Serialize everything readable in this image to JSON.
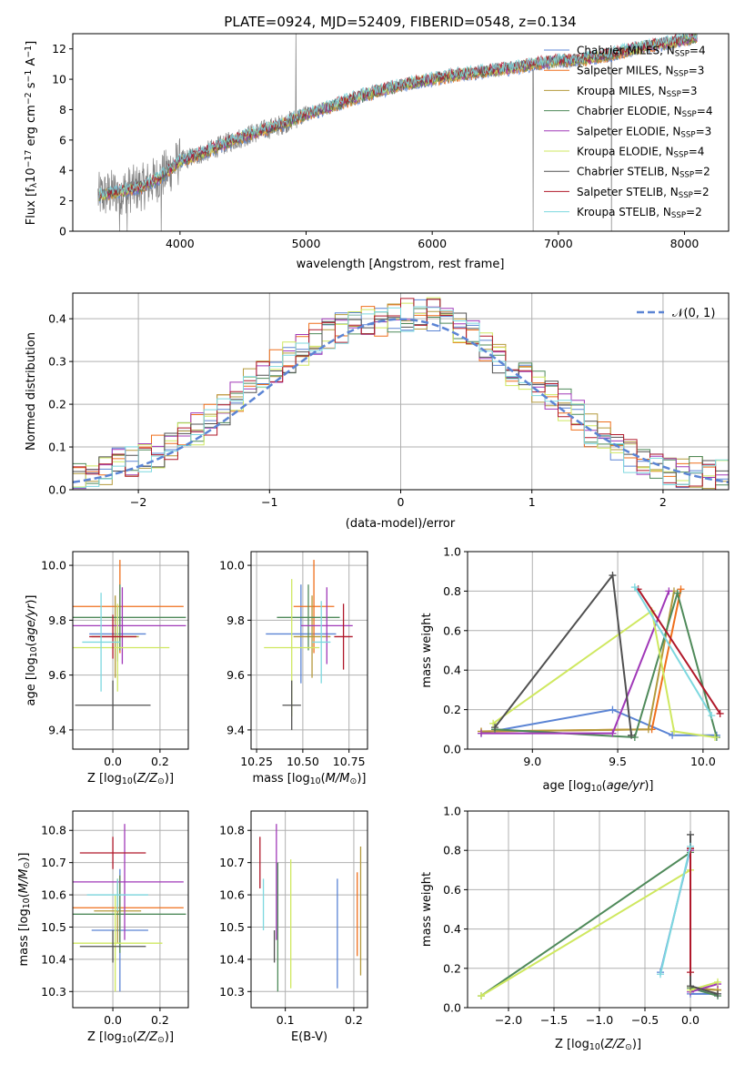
{
  "colors": {
    "chabrier_miles": "#5b84d4",
    "salpeter_miles": "#ef6f1b",
    "kroupa_miles": "#b49a3c",
    "chabrier_elodie": "#4f8a5a",
    "salpeter_elodie": "#a038b8",
    "kroupa_elodie": "#cfe860",
    "chabrier_stelib": "#505050",
    "salpeter_stelib": "#b0182a",
    "kroupa_stelib": "#7dd8df",
    "data": "#808080",
    "normal": "#5b84d4",
    "grid": "#b0b0b0"
  },
  "chart_data": [
    {
      "id": "spectrum",
      "type": "line",
      "title": "PLATE=0924, MJD=52409, FIBERID=0548, z=0.134",
      "xlabel": "wavelength [Angstrom, rest frame]",
      "ylabel": "Flux [f_λ10^-17 erg cm^-2 s^-1 A^-1]",
      "xlim": [
        3150,
        8350
      ],
      "ylim": [
        0,
        13
      ],
      "xticks": [
        "4000",
        "5000",
        "6000",
        "7000",
        "8000"
      ],
      "yticks": [
        "0",
        "2",
        "4",
        "6",
        "8",
        "10",
        "12"
      ],
      "legend_position": "top-right",
      "legend": [
        "Chabrier MILES, N_SSP=4",
        "Salpeter MILES, N_SSP=3",
        "Kroupa MILES, N_SSP=3",
        "Chabrier ELODIE, N_SSP=4",
        "Salpeter ELODIE, N_SSP=3",
        "Kroupa ELODIE, N_SSP=4",
        "Chabrier STELIB, N_SSP=2",
        "Salpeter STELIB, N_SSP=2",
        "Kroupa STELIB, N_SSP=2"
      ],
      "continuum": [
        [
          3350,
          2.3
        ],
        [
          3500,
          2.6
        ],
        [
          3700,
          2.9
        ],
        [
          3850,
          3.6
        ],
        [
          4000,
          4.6
        ],
        [
          4200,
          5.2
        ],
        [
          4400,
          5.9
        ],
        [
          4600,
          6.5
        ],
        [
          4800,
          7.0
        ],
        [
          5000,
          7.7
        ],
        [
          5200,
          8.2
        ],
        [
          5400,
          8.8
        ],
        [
          5600,
          9.3
        ],
        [
          5800,
          9.7
        ],
        [
          6000,
          10.0
        ],
        [
          6200,
          10.3
        ],
        [
          6400,
          10.5
        ],
        [
          6600,
          10.7
        ],
        [
          6800,
          11.0
        ],
        [
          7000,
          11.2
        ],
        [
          7200,
          11.3
        ],
        [
          7400,
          11.6
        ],
        [
          7600,
          12.0
        ],
        [
          7800,
          12.3
        ],
        [
          8000,
          12.6
        ],
        [
          8100,
          12.8
        ]
      ],
      "spikes": [
        [
          3520,
          0
        ],
        [
          3580,
          0
        ],
        [
          3850,
          0
        ],
        [
          4920,
          13
        ],
        [
          6800,
          0
        ],
        [
          7420,
          0
        ]
      ]
    },
    {
      "id": "residual_hist",
      "type": "line",
      "xlabel": "(data-model)/error",
      "ylabel": "Normed distribution",
      "xlim": [
        -2.5,
        2.5
      ],
      "ylim": [
        0,
        0.46
      ],
      "xticks": [
        "−2",
        "−1",
        "0",
        "1",
        "2"
      ],
      "yticks": [
        "0.0",
        "0.1",
        "0.2",
        "0.3",
        "0.4"
      ],
      "legend": [
        "𝒩(0, 1)"
      ],
      "legend_position": "top-right",
      "bin_width": 0.1,
      "hist_envelope": [
        0.03,
        0.04,
        0.05,
        0.06,
        0.07,
        0.08,
        0.09,
        0.1,
        0.12,
        0.14,
        0.16,
        0.19,
        0.22,
        0.25,
        0.27,
        0.29,
        0.31,
        0.33,
        0.35,
        0.37,
        0.38,
        0.39,
        0.39,
        0.39,
        0.4,
        0.41,
        0.41,
        0.41,
        0.4,
        0.38,
        0.36,
        0.33,
        0.3,
        0.28,
        0.26,
        0.24,
        0.22,
        0.2,
        0.17,
        0.14,
        0.12,
        0.1,
        0.08,
        0.07,
        0.06,
        0.05,
        0.04,
        0.04,
        0.03,
        0.03
      ]
    },
    {
      "id": "age_vs_z",
      "type": "scatter",
      "xlabel": "Z [log10(Z/Z☉)]",
      "ylabel": "age [log10(age/yr)]",
      "xlim": [
        -0.17,
        0.32
      ],
      "ylim": [
        9.33,
        10.05
      ],
      "xticks": [
        "0.0",
        "0.2"
      ],
      "yticks": [
        "9.4",
        "9.6",
        "9.8",
        "10.0"
      ],
      "points": [
        {
          "model": "chabrier_miles",
          "x": 0.02,
          "xerr": 0.12,
          "y": 9.75,
          "yerr": 0.1
        },
        {
          "model": "salpeter_miles",
          "x": 0.03,
          "xerr": 0.27,
          "y": 9.85,
          "yerr": 0.17
        },
        {
          "model": "kroupa_miles",
          "x": 0.01,
          "xerr": 0.1,
          "y": 9.74,
          "yerr": 0.15
        },
        {
          "model": "chabrier_elodie",
          "x": 0.03,
          "xerr": 0.28,
          "y": 9.81,
          "yerr": 0.12
        },
        {
          "model": "salpeter_elodie",
          "x": 0.04,
          "xerr": 0.27,
          "y": 9.78,
          "yerr": 0.14
        },
        {
          "model": "kroupa_elodie",
          "x": 0.02,
          "xerr": 0.22,
          "y": 9.7,
          "yerr": 0.16
        },
        {
          "model": "chabrier_stelib",
          "x": 0.0,
          "xerr": 0.16,
          "y": 9.49,
          "yerr": 0.09
        },
        {
          "model": "salpeter_stelib",
          "x": 0.0,
          "xerr": 0.1,
          "y": 9.74,
          "yerr": 0.08
        },
        {
          "model": "kroupa_stelib",
          "x": -0.05,
          "xerr": 0.08,
          "y": 9.72,
          "yerr": 0.18
        }
      ]
    },
    {
      "id": "age_vs_mass",
      "type": "scatter",
      "xlabel": "mass [log10(M/M☉)]",
      "ylabel": "",
      "xlim": [
        10.22,
        10.85
      ],
      "ylim": [
        9.33,
        10.05
      ],
      "xticks": [
        "10.25",
        "10.50",
        "10.75"
      ],
      "yticks": [
        "9.4",
        "9.6",
        "9.8",
        "10.0"
      ],
      "points": [
        {
          "model": "chabrier_miles",
          "x": 10.49,
          "xerr": 0.19,
          "y": 9.75,
          "yerr": 0.18
        },
        {
          "model": "salpeter_miles",
          "x": 10.56,
          "xerr": 0.11,
          "y": 9.85,
          "yerr": 0.17
        },
        {
          "model": "kroupa_miles",
          "x": 10.55,
          "xerr": 0.1,
          "y": 9.74,
          "yerr": 0.15
        },
        {
          "model": "chabrier_elodie",
          "x": 10.53,
          "xerr": 0.17,
          "y": 9.81,
          "yerr": 0.12
        },
        {
          "model": "salpeter_elodie",
          "x": 10.63,
          "xerr": 0.14,
          "y": 9.78,
          "yerr": 0.14
        },
        {
          "model": "kroupa_elodie",
          "x": 10.44,
          "xerr": 0.15,
          "y": 9.7,
          "yerr": 0.25
        },
        {
          "model": "chabrier_stelib",
          "x": 10.44,
          "xerr": 0.05,
          "y": 9.49,
          "yerr": 0.09
        },
        {
          "model": "salpeter_stelib",
          "x": 10.72,
          "xerr": 0.05,
          "y": 9.74,
          "yerr": 0.12
        },
        {
          "model": "kroupa_stelib",
          "x": 10.6,
          "xerr": 0.05,
          "y": 9.72,
          "yerr": 0.15
        }
      ]
    },
    {
      "id": "massweight_vs_age",
      "type": "line",
      "xlabel": "age [log10(age/yr)]",
      "ylabel": "mass weight",
      "xlim": [
        8.62,
        10.15
      ],
      "ylim": [
        0,
        1.0
      ],
      "xticks": [
        "9.0",
        "9.5",
        "10.0"
      ],
      "yticks": [
        "0.0",
        "0.2",
        "0.4",
        "0.6",
        "0.8",
        "1.0"
      ],
      "series": [
        {
          "model": "chabrier_miles",
          "x": [
            8.7,
            9.47,
            9.82,
            10.08
          ],
          "y": [
            0.08,
            0.2,
            0.07,
            0.07
          ]
        },
        {
          "model": "salpeter_miles",
          "x": [
            8.7,
            9.7,
            9.87
          ],
          "y": [
            0.09,
            0.1,
            0.81
          ]
        },
        {
          "model": "kroupa_miles",
          "x": [
            8.7,
            9.68,
            9.83
          ],
          "y": [
            0.09,
            0.1,
            0.8
          ]
        },
        {
          "model": "chabrier_elodie",
          "x": [
            8.78,
            9.6,
            9.85,
            10.08
          ],
          "y": [
            0.1,
            0.06,
            0.79,
            0.06
          ]
        },
        {
          "model": "salpeter_elodie",
          "x": [
            8.7,
            9.47,
            9.8
          ],
          "y": [
            0.08,
            0.08,
            0.8
          ]
        },
        {
          "model": "kroupa_elodie",
          "x": [
            8.77,
            9.7,
            9.83,
            10.07
          ],
          "y": [
            0.13,
            0.7,
            0.09,
            0.06
          ]
        },
        {
          "model": "chabrier_stelib",
          "x": [
            8.78,
            9.47,
            9.58
          ],
          "y": [
            0.11,
            0.88,
            0.07
          ]
        },
        {
          "model": "salpeter_stelib",
          "x": [
            9.62,
            10.1
          ],
          "y": [
            0.81,
            0.18
          ]
        },
        {
          "model": "kroupa_stelib",
          "x": [
            9.6,
            10.05
          ],
          "y": [
            0.82,
            0.17
          ]
        }
      ]
    },
    {
      "id": "mass_vs_z",
      "type": "scatter",
      "xlabel": "Z [log10(Z/Z☉)]",
      "ylabel": "mass [log10(M/M☉)]",
      "xlim": [
        -0.17,
        0.32
      ],
      "ylim": [
        10.25,
        10.86
      ],
      "xticks": [
        "0.0",
        "0.2"
      ],
      "yticks": [
        "10.3",
        "10.4",
        "10.5",
        "10.6",
        "10.7",
        "10.8"
      ],
      "points": [
        {
          "model": "chabrier_miles",
          "x": 0.03,
          "xerr": 0.12,
          "y": 10.49,
          "yerr": 0.19
        },
        {
          "model": "salpeter_miles",
          "x": 0.03,
          "xerr": 0.27,
          "y": 10.56,
          "yerr": 0.1
        },
        {
          "model": "kroupa_miles",
          "x": 0.02,
          "xerr": 0.1,
          "y": 10.55,
          "yerr": 0.1
        },
        {
          "model": "chabrier_elodie",
          "x": 0.03,
          "xerr": 0.28,
          "y": 10.54,
          "yerr": 0.12
        },
        {
          "model": "salpeter_elodie",
          "x": 0.05,
          "xerr": 0.25,
          "y": 10.64,
          "yerr": 0.18
        },
        {
          "model": "kroupa_elodie",
          "x": 0.01,
          "xerr": 0.2,
          "y": 10.45,
          "yerr": 0.15
        },
        {
          "model": "chabrier_stelib",
          "x": 0.0,
          "xerr": 0.14,
          "y": 10.44,
          "yerr": 0.05
        },
        {
          "model": "salpeter_stelib",
          "x": 0.0,
          "xerr": 0.14,
          "y": 10.73,
          "yerr": 0.05
        },
        {
          "model": "kroupa_stelib",
          "x": 0.02,
          "xerr": 0.13,
          "y": 10.6,
          "yerr": 0.05
        }
      ]
    },
    {
      "id": "mass_vs_ebv",
      "type": "scatter",
      "xlabel": "E(B-V)",
      "ylabel": "",
      "xlim": [
        0.05,
        0.22
      ],
      "ylim": [
        10.25,
        10.86
      ],
      "xticks": [
        "0.1",
        "0.2"
      ],
      "yticks": [
        "10.3",
        "10.4",
        "10.5",
        "10.6",
        "10.7",
        "10.8"
      ],
      "points": [
        {
          "model": "chabrier_miles",
          "x": 0.176,
          "y": 10.48,
          "yerr": 0.17
        },
        {
          "model": "salpeter_miles",
          "x": 0.205,
          "y": 10.54,
          "yerr": 0.13
        },
        {
          "model": "kroupa_miles",
          "x": 0.21,
          "y": 10.55,
          "yerr": 0.2
        },
        {
          "model": "chabrier_elodie",
          "x": 0.089,
          "y": 10.5,
          "yerr": 0.2
        },
        {
          "model": "salpeter_elodie",
          "x": 0.087,
          "y": 10.64,
          "yerr": 0.18
        },
        {
          "model": "kroupa_elodie",
          "x": 0.108,
          "y": 10.51,
          "yerr": 0.2
        },
        {
          "model": "chabrier_stelib",
          "x": 0.084,
          "y": 10.44,
          "yerr": 0.05
        },
        {
          "model": "salpeter_stelib",
          "x": 0.063,
          "y": 10.7,
          "yerr": 0.08
        },
        {
          "model": "kroupa_stelib",
          "x": 0.068,
          "y": 10.57,
          "yerr": 0.08
        }
      ]
    },
    {
      "id": "massweight_vs_z",
      "type": "line",
      "xlabel": "Z [log10(Z/Z☉)]",
      "ylabel": "mass weight",
      "xlim": [
        -2.45,
        0.42
      ],
      "ylim": [
        0,
        1.0
      ],
      "xticks": [
        "−2.0",
        "−1.5",
        "−1.0",
        "−0.5",
        "0.0"
      ],
      "yticks": [
        "0.0",
        "0.2",
        "0.4",
        "0.6",
        "0.8",
        "1.0"
      ],
      "series": [
        {
          "model": "chabrier_miles",
          "x": [
            -0.33,
            0.0,
            0.0,
            0.3
          ],
          "y": [
            0.18,
            0.81,
            0.07,
            0.07
          ]
        },
        {
          "model": "salpeter_miles",
          "x": [
            0.0,
            0.0,
            0.3
          ],
          "y": [
            0.81,
            0.1,
            0.09
          ]
        },
        {
          "model": "kroupa_miles",
          "x": [
            0.0,
            0.0,
            0.3
          ],
          "y": [
            0.8,
            0.1,
            0.09
          ]
        },
        {
          "model": "chabrier_elodie",
          "x": [
            -2.3,
            0.0,
            0.0,
            0.3
          ],
          "y": [
            0.06,
            0.79,
            0.1,
            0.06
          ]
        },
        {
          "model": "salpeter_elodie",
          "x": [
            0.0,
            0.0,
            0.3
          ],
          "y": [
            0.8,
            0.08,
            0.12
          ]
        },
        {
          "model": "kroupa_elodie",
          "x": [
            -2.3,
            0.0,
            0.0,
            0.3
          ],
          "y": [
            0.06,
            0.7,
            0.09,
            0.13
          ]
        },
        {
          "model": "chabrier_stelib",
          "x": [
            0.0,
            0.0,
            0.3
          ],
          "y": [
            0.88,
            0.11,
            0.07
          ]
        },
        {
          "model": "salpeter_stelib",
          "x": [
            0.0,
            0.0
          ],
          "y": [
            0.81,
            0.18
          ]
        },
        {
          "model": "kroupa_stelib",
          "x": [
            -0.33,
            0.0
          ],
          "y": [
            0.17,
            0.82
          ]
        }
      ]
    }
  ]
}
